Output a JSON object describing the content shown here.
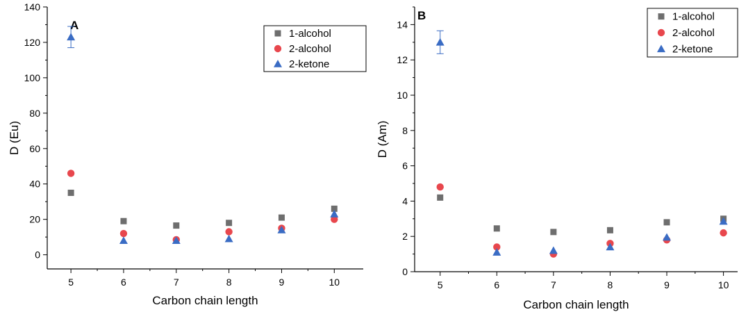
{
  "colors": {
    "1-alcohol": "#6e6e6e",
    "2-alcohol": "#e8474d",
    "2-ketone": "#3a6cc4",
    "axis": "#000000",
    "error_bar": "#3a6cc4"
  },
  "chart_data": [
    {
      "type": "scatter",
      "panel_label": "A",
      "xlabel": "Carbon chain length",
      "ylabel": "D (Eu)",
      "x": [
        5,
        6,
        7,
        8,
        9,
        10
      ],
      "x_ticks": [
        "5",
        "6",
        "7",
        "8",
        "9",
        "10"
      ],
      "y_ticks": [
        "0",
        "20",
        "40",
        "60",
        "80",
        "100",
        "120",
        "140"
      ],
      "ylim": [
        -8,
        140
      ],
      "xlim": [
        4.55,
        10.55
      ],
      "legend_position": "top-right",
      "grid": false,
      "series": [
        {
          "name": "1-alcohol",
          "marker": "square",
          "values": [
            35,
            19,
            16.5,
            18,
            21,
            26
          ]
        },
        {
          "name": "2-alcohol",
          "marker": "circle",
          "values": [
            46,
            12,
            8.5,
            13,
            15,
            20
          ]
        },
        {
          "name": "2-ketone",
          "marker": "triangle",
          "values": [
            123,
            8,
            8,
            9,
            14,
            23
          ],
          "error": [
            6,
            0,
            0,
            0,
            0,
            0
          ]
        }
      ]
    },
    {
      "type": "scatter",
      "panel_label": "B",
      "xlabel": "Carbon chain length",
      "ylabel": "D (Am)",
      "x": [
        5,
        6,
        7,
        8,
        9,
        10
      ],
      "x_ticks": [
        "5",
        "6",
        "7",
        "8",
        "9",
        "10"
      ],
      "y_ticks": [
        "0",
        "2",
        "4",
        "6",
        "8",
        "10",
        "12",
        "14"
      ],
      "ylim": [
        0,
        15
      ],
      "xlim": [
        4.55,
        10.25
      ],
      "legend_position": "top-right",
      "grid": false,
      "series": [
        {
          "name": "1-alcohol",
          "marker": "square",
          "values": [
            4.2,
            2.45,
            2.25,
            2.35,
            2.8,
            3.0
          ]
        },
        {
          "name": "2-alcohol",
          "marker": "circle",
          "values": [
            4.8,
            1.4,
            1.0,
            1.6,
            1.8,
            2.2
          ]
        },
        {
          "name": "2-ketone",
          "marker": "triangle",
          "values": [
            13.0,
            1.1,
            1.2,
            1.4,
            1.95,
            2.85
          ],
          "error": [
            0.65,
            0,
            0,
            0,
            0,
            0
          ]
        }
      ]
    }
  ]
}
